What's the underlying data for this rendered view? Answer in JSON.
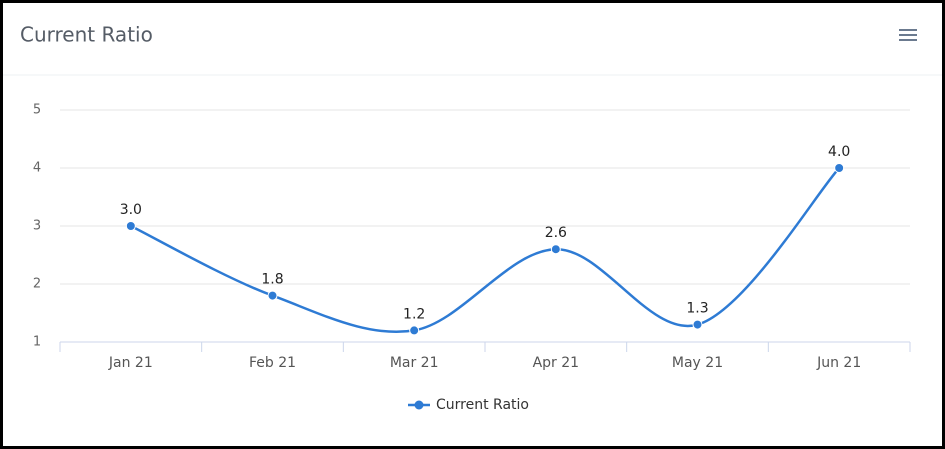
{
  "chart_data": {
    "type": "line",
    "title": "Current Ratio",
    "categories": [
      "Jan 21",
      "Feb 21",
      "Mar 21",
      "Apr 21",
      "May 21",
      "Jun 21"
    ],
    "series": [
      {
        "name": "Current Ratio",
        "color": "#2e7bd4",
        "values": [
          3.0,
          1.8,
          1.2,
          2.6,
          1.3,
          4.0
        ],
        "value_labels": [
          "3.0",
          "1.8",
          "1.2",
          "2.6",
          "1.3",
          "4.0"
        ]
      }
    ],
    "ylim": [
      1,
      5
    ],
    "yticks": [
      1,
      2,
      3,
      4,
      5
    ],
    "grid": true,
    "legend": "bottom"
  }
}
